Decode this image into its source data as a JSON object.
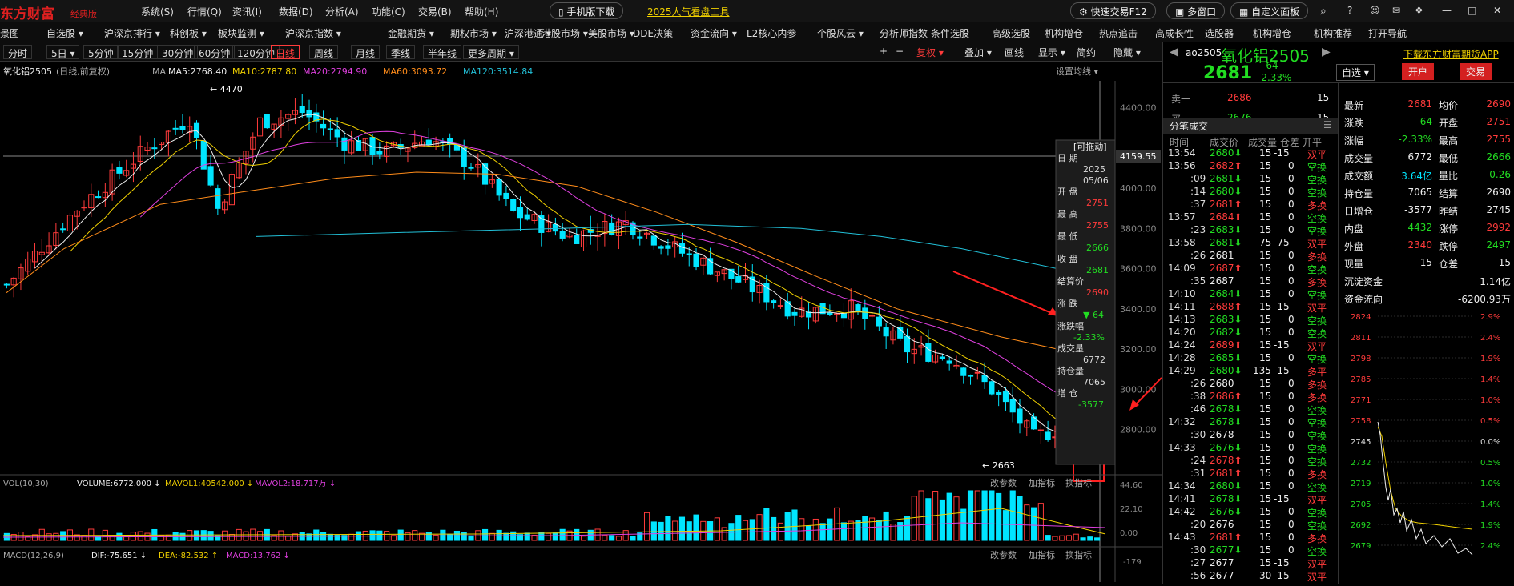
{
  "brand": {
    "name": "东方财富",
    "edition": "经典版"
  },
  "menu": [
    "系统(S)",
    "行情(Q)",
    "资讯(I)",
    "数据(D)",
    "分析(A)",
    "功能(C)",
    "交易(B)",
    "帮助(H)"
  ],
  "top_pills": {
    "mobile": "手机版下载",
    "tool": "2025人气看盘工具",
    "quick": "快速交易F12",
    "multi": "多窗口",
    "custom": "自定义面板"
  },
  "nav": [
    "景图",
    "自选股 ▾",
    "沪深京排行 ▾",
    "科创板 ▾",
    "板块监测 ▾",
    "沪深京指数 ▾",
    "金融期货 ▾",
    "期权市场 ▾",
    "全球市场 ▾",
    "沪深港通 ▾",
    "港股市场 ▾",
    "美股市场 ▾",
    "DDE决策",
    "资金流向 ▾",
    "L2核心内参",
    "个股风云 ▾",
    "分析师指数",
    "条件选股",
    "高级选股",
    "机构增仓",
    "热点追击",
    "高成长性",
    "选股器",
    "机构增仓",
    "机构推荐",
    "打开导航"
  ],
  "timeframes": [
    "分时",
    "5日 ▾",
    "5分钟",
    "15分钟",
    "30分钟",
    "60分钟",
    "120分钟",
    "日线",
    "周线",
    "月线",
    "季线",
    "半年线",
    "更多周期 ▾"
  ],
  "active_tf": "日线",
  "toolbar": [
    "+",
    "−",
    "复权 ▾",
    "叠加 ▾",
    "画线",
    "显示 ▾",
    "简约",
    "隐藏 ▾"
  ],
  "ma_legend": {
    "name": "氧化铝2505",
    "mode": "(日线,前复权)",
    "ma": "MA",
    "ma5": "MA5:2768.40",
    "ma10": "MA10:2787.80",
    "ma20": "MA20:2794.90",
    "ma60": "MA60:3093.72",
    "ma120": "MA120:3514.84",
    "setting": "设置均线 ▾"
  },
  "colors": {
    "ma5": "#eeeeee",
    "ma10": "#f0d000",
    "ma20": "#e040e0",
    "ma60": "#ff8c1a",
    "ma120": "#22c0d8",
    "up": "#ff3b3b",
    "down": "#00e5ff"
  },
  "price_axis": [
    "4400.00",
    "4159.55",
    "4000.00",
    "3800.00",
    "3600.00",
    "3400.00",
    "3200.00",
    "3000.00",
    "2800.00"
  ],
  "annotations": {
    "high": "4470",
    "low": "2663",
    "crosshair_price": "4159.55"
  },
  "tooltip": {
    "title": "[可拖动]",
    "date_label": "日  期",
    "date": "2025\n05/06",
    "date_year": "2025",
    "date_md": "05/06",
    "open_label": "开  盘",
    "open": "2751",
    "high_label": "最  高",
    "high": "2755",
    "low_label": "最  低",
    "low": "2666",
    "close_label": "收  盘",
    "close": "2681",
    "settle_label": "结算价",
    "settle": "2690",
    "chg_label": "涨  跌",
    "chg": "▼ 64",
    "pct_label": "涨跌幅",
    "pct": "-2.33%",
    "vol_label": "成交量",
    "vol": "6772",
    "oi_label": "持仓量",
    "oi": "7065",
    "doi_label": "增  仓",
    "doi": "-3577"
  },
  "vol_panel": {
    "title": "VOL(10,30)",
    "volume": "VOLUME:6772.000 ↓",
    "mavol1": "MAVOL1:40542.000 ↓",
    "mavol2": "MAVOL2:18.717万 ↓",
    "axis": [
      "44.60",
      "22.10",
      "0.00"
    ],
    "links": [
      "改参数",
      "加指标",
      "换指标"
    ]
  },
  "macd_panel": {
    "title": "MACD(12,26,9)",
    "dif": "DIF:-75.651 ↓",
    "dea": "DEA:-82.532 ↑",
    "macd": "MACD:13.762 ↓",
    "axis": "-179",
    "links": [
      "改参数",
      "加指标",
      "换指标"
    ]
  },
  "quote": {
    "code": "ao2505",
    "name": "氧化铝2505",
    "price": "2681",
    "chg": "-64",
    "pct": "-2.33%",
    "download": "下载东方财富期货APP",
    "watch": "自选 ▾",
    "open_acct": "开户",
    "trade": "交易"
  },
  "orderbook": [
    {
      "label": "卖一",
      "price": "2686",
      "vol": "15"
    },
    {
      "label": "买一",
      "price": "2676",
      "vol": "15"
    }
  ],
  "ticks_header": {
    "title": "分笔成交",
    "cols": [
      "时间",
      "成交价",
      "成交量",
      "仓差",
      "开平"
    ]
  },
  "ticks": [
    [
      "13:54",
      "2680⬇",
      "15",
      "-15",
      "双平",
      "g"
    ],
    [
      "13:56",
      "2682⬆",
      "15",
      "0",
      "空换",
      "r"
    ],
    [
      ":09",
      "2681⬇",
      "15",
      "0",
      "空换",
      "g"
    ],
    [
      ":14",
      "2680⬇",
      "15",
      "0",
      "空换",
      "g"
    ],
    [
      ":37",
      "2681⬆",
      "15",
      "0",
      "多换",
      "r"
    ],
    [
      "13:57",
      "2684⬆",
      "15",
      "0",
      "空换",
      "r"
    ],
    [
      ":23",
      "2683⬇",
      "15",
      "0",
      "空换",
      "g"
    ],
    [
      "13:58",
      "2681⬇",
      "75",
      "-75",
      "双平",
      "g"
    ],
    [
      ":26",
      "2681",
      "15",
      "0",
      "多换",
      "w"
    ],
    [
      "14:09",
      "2687⬆",
      "15",
      "0",
      "空换",
      "r"
    ],
    [
      ":35",
      "2687",
      "15",
      "0",
      "多换",
      "w"
    ],
    [
      "14:10",
      "2684⬇",
      "15",
      "0",
      "空换",
      "g"
    ],
    [
      "14:11",
      "2688⬆",
      "15",
      "-15",
      "双平",
      "r"
    ],
    [
      "14:13",
      "2683⬇",
      "15",
      "0",
      "空换",
      "g"
    ],
    [
      "14:20",
      "2682⬇",
      "15",
      "0",
      "空换",
      "g"
    ],
    [
      "14:24",
      "2689⬆",
      "15",
      "-15",
      "双平",
      "r"
    ],
    [
      "14:28",
      "2685⬇",
      "15",
      "0",
      "空换",
      "g"
    ],
    [
      "14:29",
      "2680⬇",
      "135",
      "-15",
      "多平",
      "g"
    ],
    [
      ":26",
      "2680",
      "15",
      "0",
      "多换",
      "w"
    ],
    [
      ":38",
      "2686⬆",
      "15",
      "0",
      "多换",
      "r"
    ],
    [
      ":46",
      "2678⬇",
      "15",
      "0",
      "空换",
      "g"
    ],
    [
      "14:32",
      "2678⬇",
      "15",
      "0",
      "空换",
      "g"
    ],
    [
      ":30",
      "2678",
      "15",
      "0",
      "空换",
      "w"
    ],
    [
      "14:33",
      "2676⬇",
      "15",
      "0",
      "空换",
      "g"
    ],
    [
      ":24",
      "2678⬆",
      "15",
      "0",
      "空换",
      "r"
    ],
    [
      ":31",
      "2681⬆",
      "15",
      "0",
      "多换",
      "r"
    ],
    [
      "14:34",
      "2680⬇",
      "15",
      "0",
      "空换",
      "g"
    ],
    [
      "14:41",
      "2678⬇",
      "15",
      "-15",
      "双平",
      "g"
    ],
    [
      "14:42",
      "2676⬇",
      "15",
      "0",
      "空换",
      "g"
    ],
    [
      ":20",
      "2676",
      "15",
      "0",
      "空换",
      "w"
    ],
    [
      "14:43",
      "2681⬆",
      "15",
      "0",
      "多换",
      "r"
    ],
    [
      ":30",
      "2677⬇",
      "15",
      "0",
      "空换",
      "g"
    ],
    [
      ":27",
      "2677",
      "15",
      "-15",
      "双平",
      "w"
    ],
    [
      ":56",
      "2677",
      "30",
      "-15",
      "双平",
      "w"
    ]
  ],
  "stats": [
    [
      "最新",
      "2681",
      "r",
      "均价",
      "2690",
      "r"
    ],
    [
      "涨跌",
      "-64",
      "g",
      "开盘",
      "2751",
      "r"
    ],
    [
      "涨幅",
      "-2.33%",
      "g",
      "最高",
      "2755",
      "r"
    ],
    [
      "成交量",
      "6772",
      "w",
      "最低",
      "2666",
      "g"
    ],
    [
      "成交额",
      "3.64亿",
      "c",
      "量比",
      "0.26",
      "g"
    ],
    [
      "持仓量",
      "7065",
      "w",
      "结算",
      "2690",
      "w"
    ],
    [
      "日增仓",
      "-3577",
      "w",
      "昨结",
      "2745",
      "w"
    ],
    [
      "内盘",
      "4432",
      "g",
      "涨停",
      "2992",
      "r"
    ],
    [
      "外盘",
      "2340",
      "r",
      "跌停",
      "2497",
      "g"
    ],
    [
      "现量",
      "15",
      "w",
      "仓差",
      "15",
      "w"
    ]
  ],
  "fund": [
    [
      "沉淀资金",
      "1.14亿"
    ],
    [
      "资金流向",
      "-6200.93万"
    ]
  ],
  "mini_axis": [
    [
      "2824",
      "2.9%"
    ],
    [
      "2811",
      "2.4%"
    ],
    [
      "2798",
      "1.9%"
    ],
    [
      "2785",
      "1.4%"
    ],
    [
      "2771",
      "1.0%"
    ],
    [
      "2758",
      "0.5%"
    ],
    [
      "2745",
      "0.0%"
    ],
    [
      "2732",
      "0.5%"
    ],
    [
      "2719",
      "1.0%"
    ],
    [
      "2705",
      "1.4%"
    ],
    [
      "2692",
      "1.9%"
    ],
    [
      "2679",
      "2.4%"
    ]
  ]
}
